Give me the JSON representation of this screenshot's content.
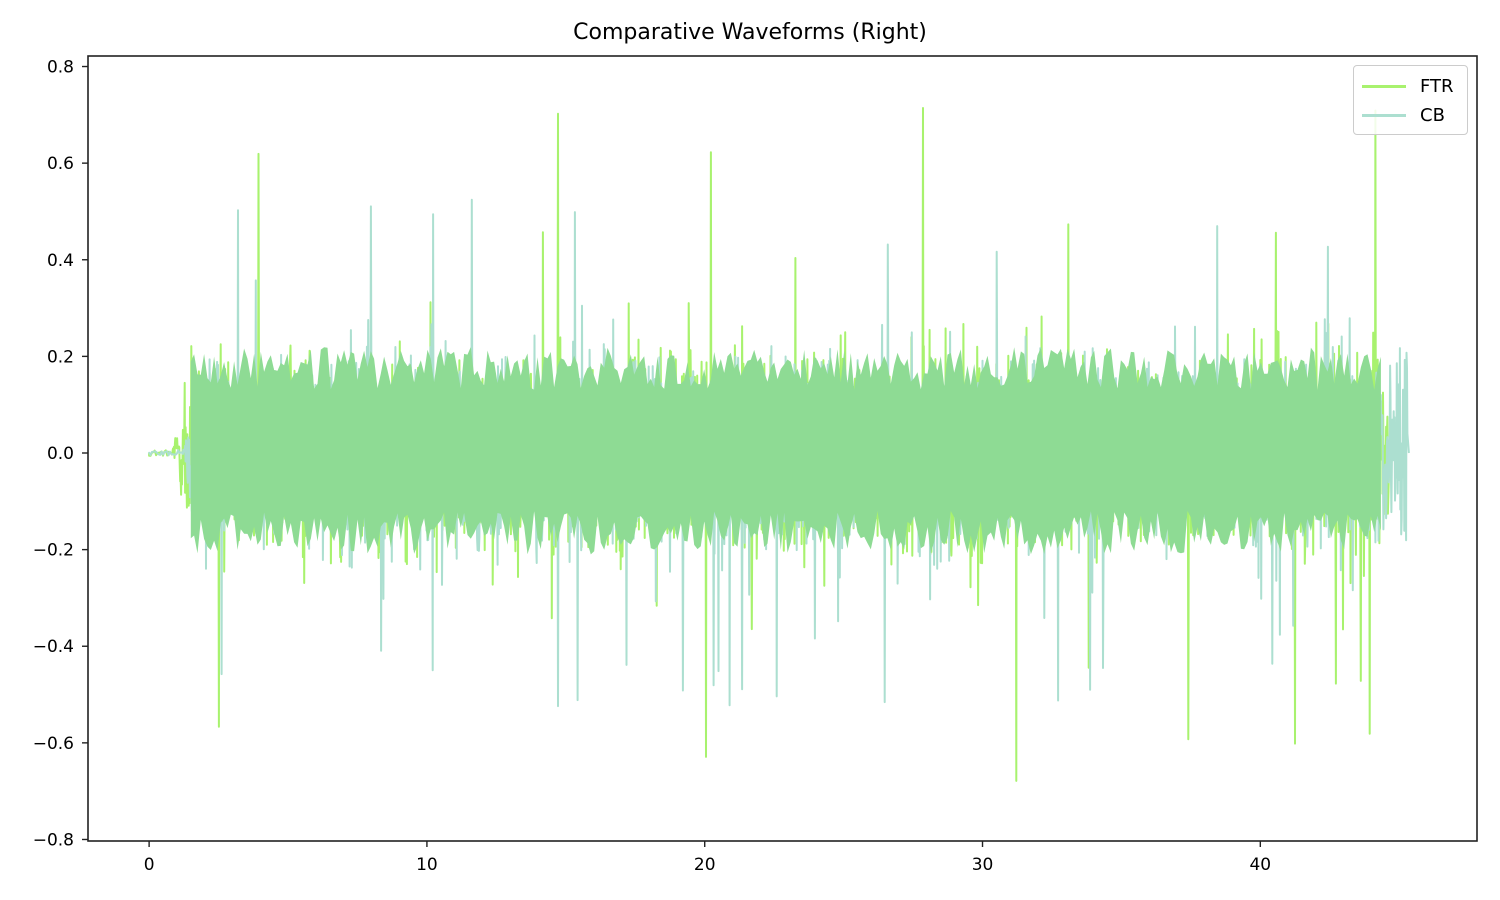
{
  "chart_data": {
    "type": "line",
    "title": "Comparative Waveforms (Right)",
    "xlabel": "",
    "ylabel": "",
    "xlim": [
      -2.2,
      47.8
    ],
    "ylim": [
      -0.8,
      0.82
    ],
    "xticks": [
      0,
      10,
      20,
      30,
      40
    ],
    "xtick_labels": [
      "0",
      "10",
      "20",
      "30",
      "40"
    ],
    "yticks": [
      0.8,
      0.6,
      0.4,
      0.2,
      0.0,
      -0.2,
      -0.4,
      -0.6,
      -0.8
    ],
    "ytick_labels": [
      "0.8",
      "0.6",
      "0.4",
      "0.2",
      "0.0",
      "−0.2",
      "−0.4",
      "−0.6",
      "−0.8"
    ],
    "grid": false,
    "legend_position": "upper right",
    "series": [
      {
        "name": "FTR",
        "color": "#a8f26e",
        "signal_start_s": 0.0,
        "onset_s": 0.8,
        "end_s": 44.6,
        "approx_peak_max": 0.75,
        "approx_peak_min": -0.73,
        "typical_body_amplitude": 0.15
      },
      {
        "name": "CB",
        "color": "#acdfd0",
        "signal_start_s": 0.0,
        "onset_s": 1.2,
        "end_s": 45.3,
        "approx_peak_max": 0.54,
        "approx_peak_min": -0.65,
        "typical_body_amplitude": 0.15
      }
    ],
    "overlap_color": "#8edb94"
  },
  "legend": {
    "items": [
      {
        "label": "FTR",
        "color": "#a8f26e"
      },
      {
        "label": "CB",
        "color": "#acdfd0"
      }
    ]
  }
}
